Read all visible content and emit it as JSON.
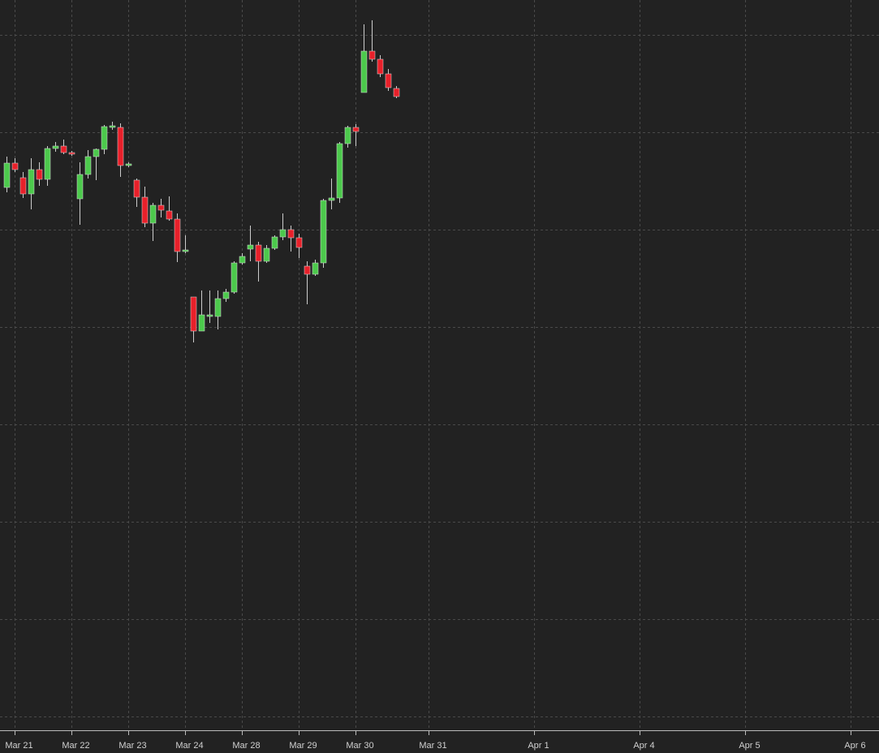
{
  "chart_data": {
    "type": "candlestick",
    "x": [
      0,
      1,
      2,
      3,
      4,
      5,
      6,
      7,
      8,
      9,
      10,
      11,
      12,
      13,
      14,
      15,
      16,
      17,
      18,
      19,
      20,
      21,
      22,
      23,
      24,
      25,
      26,
      27,
      28,
      29,
      30,
      31,
      32,
      33,
      34,
      35,
      36,
      37,
      38,
      39,
      40,
      41,
      42,
      43,
      44,
      45,
      46,
      47,
      48
    ],
    "open": [
      652,
      682,
      664,
      644,
      674,
      662,
      700,
      703,
      695,
      638,
      668,
      690,
      699,
      726,
      726,
      679,
      661,
      640,
      608,
      630,
      623,
      613,
      573,
      517,
      475,
      493,
      493,
      515,
      523,
      559,
      576,
      581,
      561,
      577,
      591,
      600,
      590,
      555,
      545,
      559,
      636,
      639,
      706,
      726,
      769,
      820,
      810,
      792,
      774
    ],
    "high": [
      690,
      688,
      671,
      688,
      683,
      703,
      708,
      711,
      697,
      683,
      698,
      700,
      729,
      733,
      731,
      683,
      663,
      653,
      633,
      638,
      641,
      620,
      593,
      517,
      525,
      525,
      525,
      527,
      561,
      571,
      605,
      585,
      581,
      593,
      620,
      605,
      595,
      561,
      563,
      638,
      663,
      708,
      728,
      730,
      853,
      858,
      815,
      798,
      777
    ],
    "low": [
      646,
      671,
      639,
      625,
      654,
      654,
      696,
      693,
      691,
      606,
      663,
      661,
      693,
      723,
      665,
      677,
      628,
      603,
      586,
      615,
      611,
      560,
      571,
      461,
      475,
      485,
      477,
      511,
      521,
      557,
      561,
      536,
      559,
      575,
      587,
      573,
      565,
      508,
      543,
      553,
      625,
      633,
      701,
      703,
      769,
      807,
      788,
      771,
      762
    ],
    "close": [
      682,
      674,
      644,
      674,
      662,
      700,
      703,
      695,
      693,
      668,
      690,
      699,
      727,
      728,
      679,
      681,
      640,
      608,
      630,
      624,
      613,
      573,
      575,
      475,
      495,
      495,
      515,
      523,
      559,
      567,
      581,
      561,
      577,
      591,
      600,
      590,
      578,
      545,
      559,
      636,
      639,
      706,
      726,
      721,
      820,
      810,
      792,
      775,
      764
    ],
    "up_color": "#4cc94c",
    "down_color": "#e8202a",
    "xlim": [
      -0.8,
      107.5
    ],
    "xticks": [
      {
        "value": 1,
        "label": "Mar 21"
      },
      {
        "value": 8,
        "label": "Mar 22"
      },
      {
        "value": 15,
        "label": "Mar 23"
      },
      {
        "value": 22,
        "label": "Mar 24"
      },
      {
        "value": 29,
        "label": "Mar 28"
      },
      {
        "value": 36,
        "label": "Mar 29"
      },
      {
        "value": 43,
        "label": "Mar 30"
      },
      {
        "value": 52,
        "label": "Mar 31"
      },
      {
        "value": 65,
        "label": "Apr 1"
      },
      {
        "value": 78,
        "label": "Apr 4"
      },
      {
        "value": 91,
        "label": "Apr 5"
      },
      {
        "value": 104,
        "label": "Apr 6"
      }
    ],
    "ylim": [
      -17,
      883
    ],
    "yticks": [
      0,
      120,
      240,
      360,
      480,
      600,
      720,
      840
    ],
    "grid": true
  }
}
